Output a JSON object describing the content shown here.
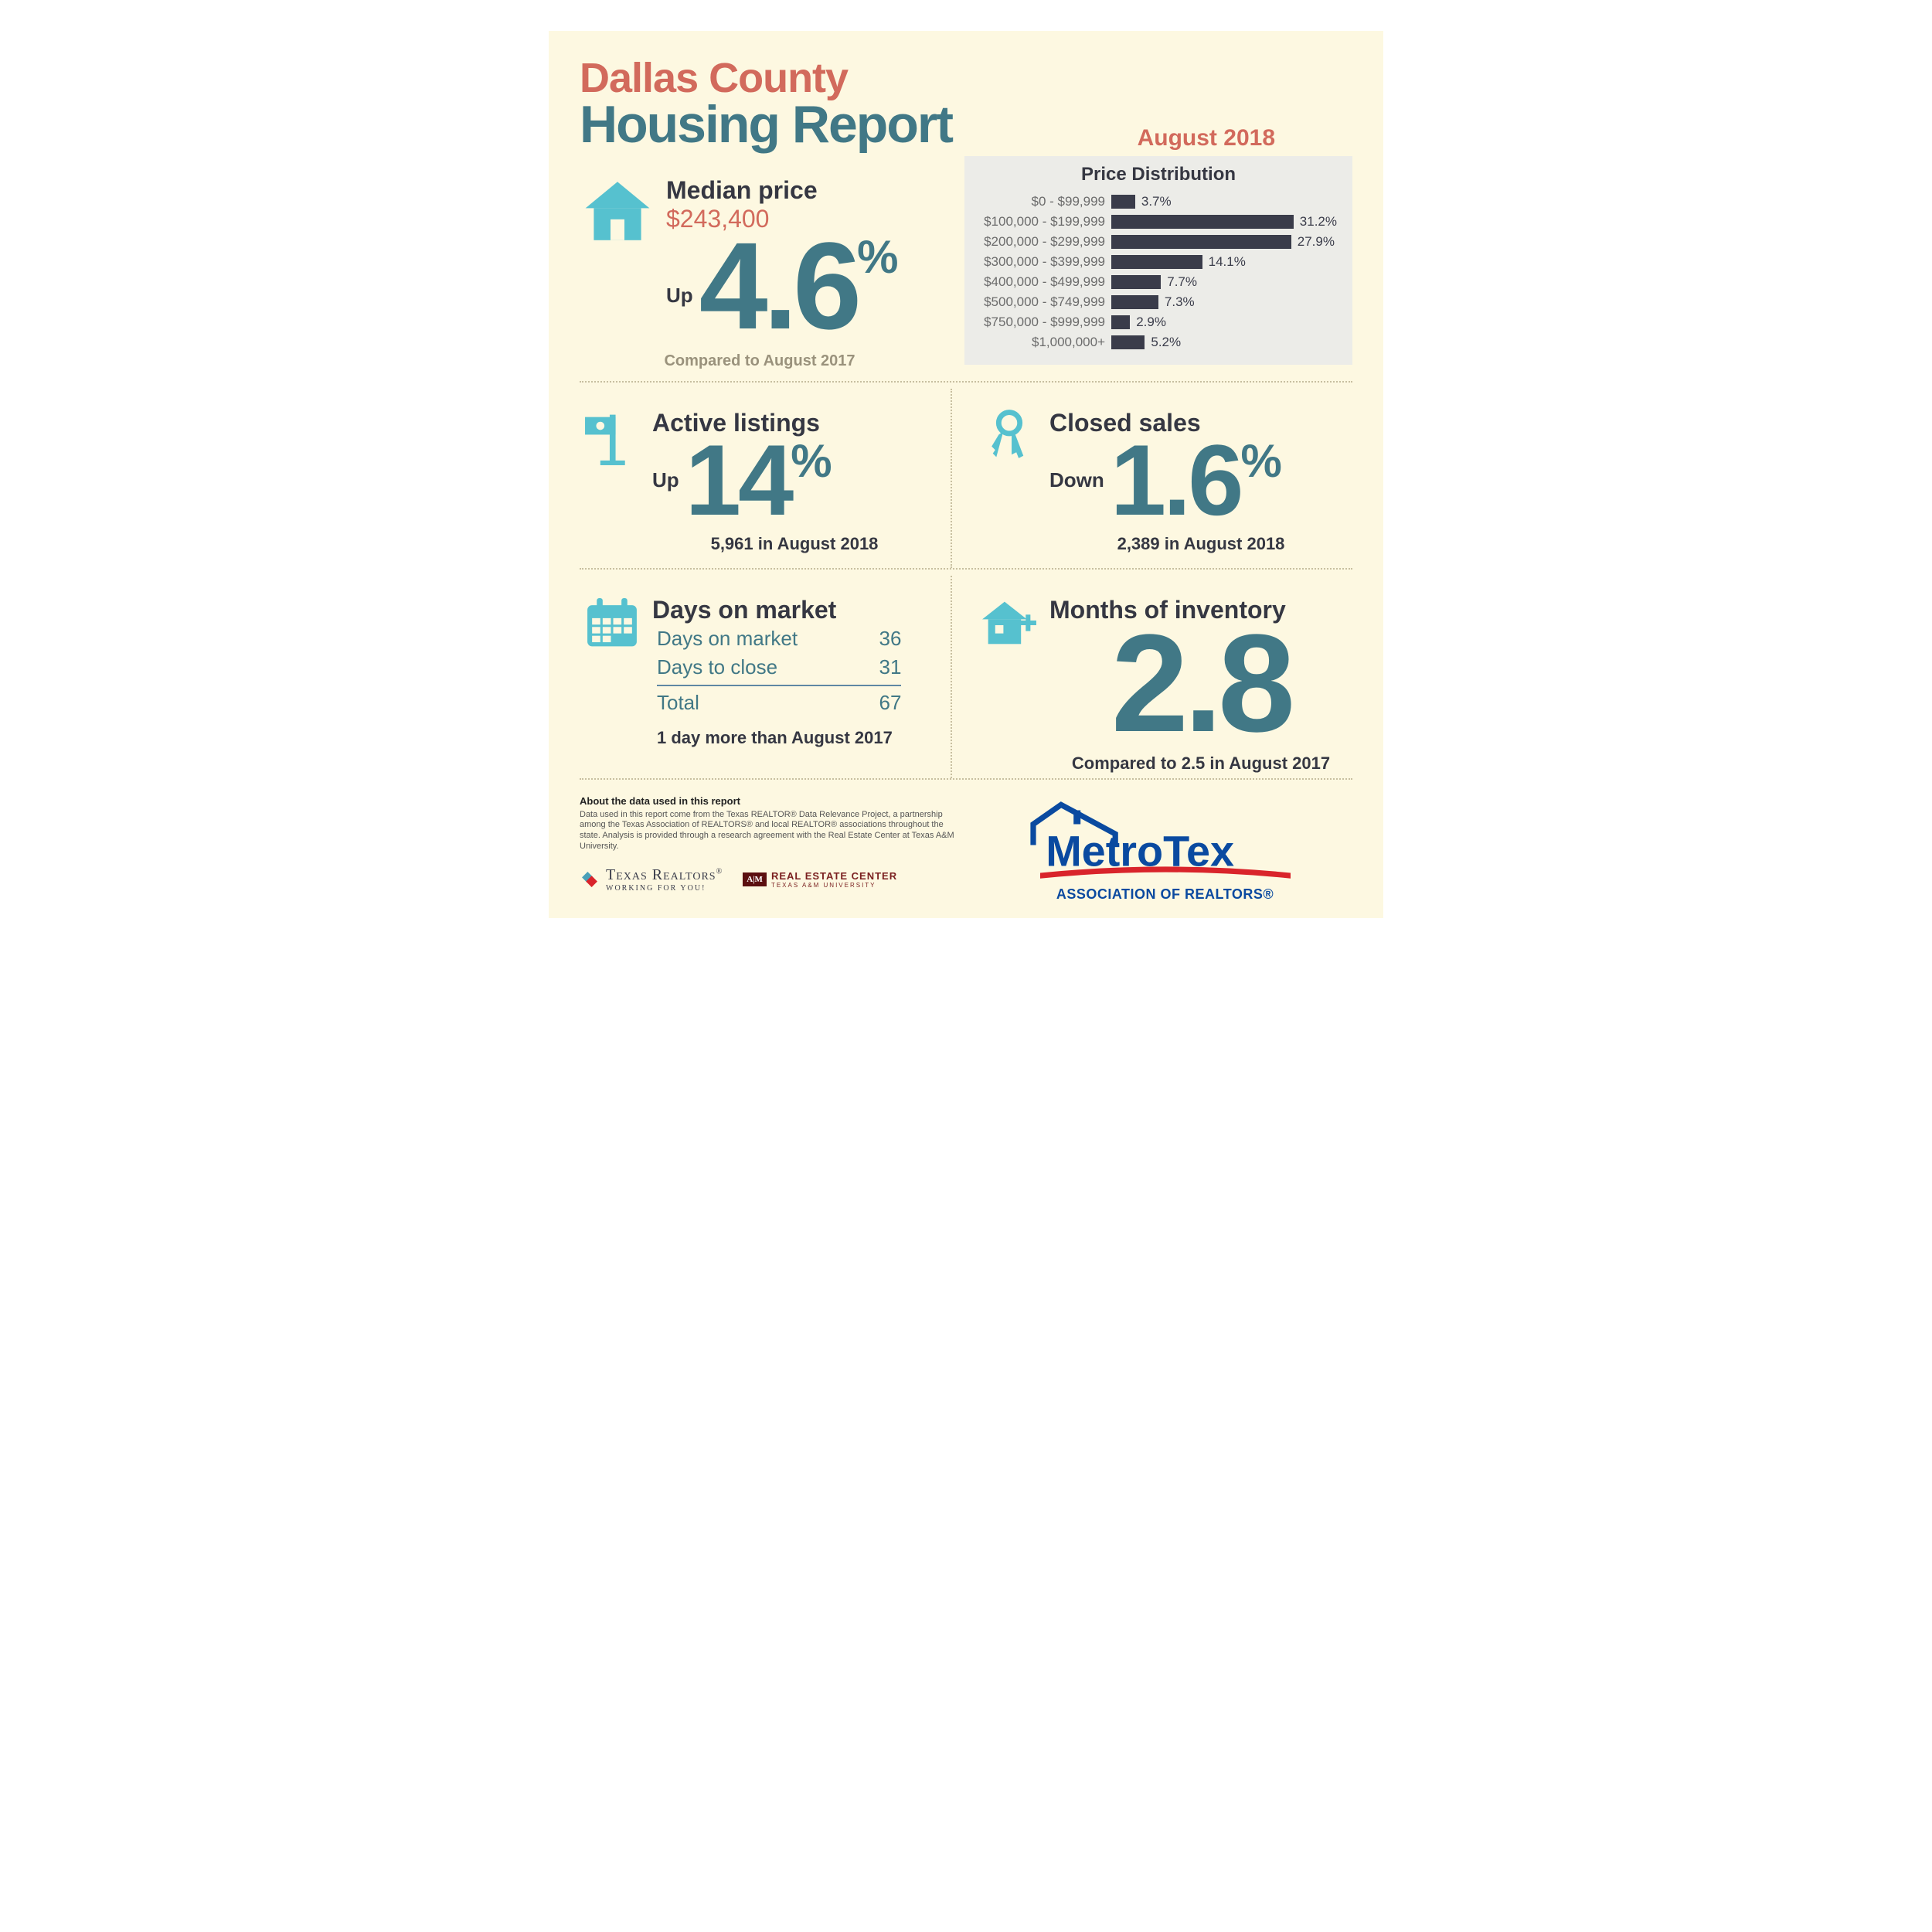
{
  "title": {
    "line1": "Dallas County",
    "line2": "Housing Report"
  },
  "date": "August 2018",
  "colors": {
    "accent_red": "#d26a5c",
    "accent_teal": "#417886",
    "icon_teal": "#56c1cf",
    "dark": "#353742",
    "panel_bg": "#ecece8",
    "page_bg": "#fdf8e1",
    "bar": "#3a3c4a",
    "metrotex_blue": "#0a4aa0",
    "metrotex_red": "#d9242b"
  },
  "median": {
    "label": "Median price",
    "value": "$243,400",
    "direction": "Up",
    "percent": "4.6",
    "pct_symbol": "%",
    "caption": "Compared to August 2017"
  },
  "distribution": {
    "title": "Price Distribution",
    "max_percent": 35,
    "rows": [
      {
        "label": "$0 - $99,999",
        "pct": 3.7
      },
      {
        "label": "$100,000 - $199,999",
        "pct": 31.2
      },
      {
        "label": "$200,000 - $299,999",
        "pct": 27.9
      },
      {
        "label": "$300,000 - $399,999",
        "pct": 14.1
      },
      {
        "label": "$400,000 - $499,999",
        "pct": 7.7
      },
      {
        "label": "$500,000 - $749,999",
        "pct": 7.3
      },
      {
        "label": "$750,000 - $999,999",
        "pct": 2.9
      },
      {
        "label": "$1,000,000+",
        "pct": 5.2
      }
    ]
  },
  "active": {
    "label": "Active listings",
    "direction": "Up",
    "percent": "14",
    "pct_symbol": "%",
    "caption": "5,961 in August 2018"
  },
  "closed": {
    "label": "Closed sales",
    "direction": "Down",
    "percent": "1.6",
    "pct_symbol": "%",
    "caption": "2,389 in August 2018"
  },
  "dom": {
    "label": "Days on market",
    "rows": [
      {
        "name": "Days on market",
        "value": "36"
      },
      {
        "name": "Days to close",
        "value": "31"
      }
    ],
    "total_label": "Total",
    "total_value": "67",
    "caption": "1 day more than August 2017"
  },
  "inventory": {
    "label": "Months of inventory",
    "value": "2.8",
    "caption": "Compared to 2.5 in August 2017"
  },
  "footer": {
    "about_title": "About the data used in this report",
    "about_body": "Data used in this report come from the Texas REALTOR® Data Relevance Project, a partnership among the Texas Association of REALTORS® and local REALTOR® associations throughout the state. Analysis is provided through a research agreement with the Real Estate Center at Texas A&M University.",
    "tx_realtors": "Texas Realtors",
    "tx_realtors_sub": "WORKING FOR YOU!",
    "rec": "REAL ESTATE CENTER",
    "rec_sub": "TEXAS A&M UNIVERSITY",
    "atm": "A|M",
    "metrotex": "MetroTex",
    "metrotex_sub": "ASSOCIATION OF REALTORS®",
    "tx_realtors_reg": "®"
  }
}
